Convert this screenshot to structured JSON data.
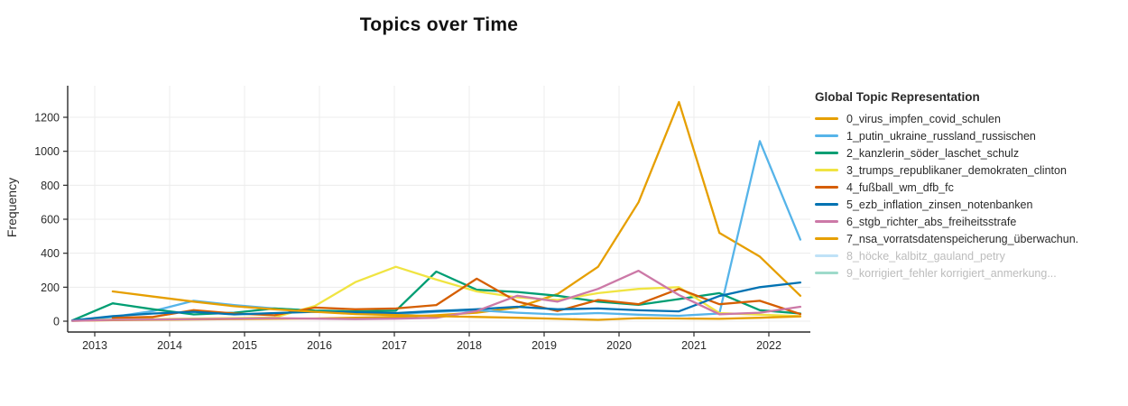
{
  "title": "Topics over Time",
  "legend": {
    "title": "Global Topic Representation"
  },
  "chart_data": {
    "type": "line",
    "title": "Topics over Time",
    "xlabel": "",
    "ylabel": "Frequency",
    "grid": true,
    "legend_position": "right",
    "xlim": [
      2012.6,
      2022.55
    ],
    "ylim": [
      -64,
      1386
    ],
    "xticks": {
      "values": [
        2013,
        2014,
        2015,
        2016,
        2017,
        2018,
        2019,
        2020,
        2021,
        2022
      ],
      "labels": [
        "2013",
        "2014",
        "2015",
        "2016",
        "2017",
        "2018",
        "2019",
        "2020",
        "2021",
        "2022"
      ]
    },
    "yticks": {
      "values": [
        0,
        200,
        400,
        600,
        800,
        1000,
        1200
      ],
      "labels": [
        "0",
        "200",
        "400",
        "600",
        "800",
        "1000",
        "1200"
      ]
    },
    "x": [
      2012.7,
      2013.24,
      2013.78,
      2014.32,
      2014.86,
      2015.4,
      2015.94,
      2016.48,
      2017.02,
      2017.56,
      2018.1,
      2018.64,
      2019.18,
      2019.72,
      2020.26,
      2020.8,
      2021.34,
      2021.88,
      2022.42
    ],
    "series": [
      {
        "name": "0_virus_impfen_covid_schulen",
        "color": "#E69F00",
        "hidden": false,
        "values": [
          2,
          6,
          8,
          10,
          12,
          14,
          16,
          20,
          25,
          35,
          50,
          80,
          160,
          320,
          700,
          1290,
          520,
          380,
          150
        ]
      },
      {
        "name": "1_putin_ukraine_russland_russischen",
        "color": "#56B4E9",
        "hidden": false,
        "values": [
          2,
          25,
          60,
          120,
          95,
          75,
          60,
          48,
          42,
          55,
          65,
          50,
          40,
          48,
          38,
          32,
          45,
          1060,
          480
        ]
      },
      {
        "name": "2_kanzlerin_söder_laschet_schulz",
        "color": "#009E73",
        "hidden": false,
        "values": [
          4,
          105,
          70,
          40,
          50,
          75,
          62,
          58,
          62,
          292,
          185,
          172,
          150,
          115,
          96,
          130,
          165,
          65,
          45
        ]
      },
      {
        "name": "3_trumps_republikaner_demokraten_clinton",
        "color": "#F0E442",
        "hidden": false,
        "values": [
          3,
          10,
          12,
          15,
          18,
          22,
          90,
          230,
          320,
          245,
          175,
          140,
          125,
          165,
          190,
          200,
          48,
          38,
          30
        ]
      },
      {
        "name": "4_fußball_wm_dfb_fc",
        "color": "#D55E00",
        "hidden": false,
        "values": [
          null,
          20,
          25,
          65,
          45,
          35,
          80,
          70,
          75,
          95,
          250,
          115,
          60,
          125,
          100,
          190,
          100,
          120,
          42
        ]
      },
      {
        "name": "5_ezb_inflation_zinsen_notenbanken",
        "color": "#0072B2",
        "hidden": false,
        "values": [
          4,
          30,
          45,
          55,
          40,
          48,
          55,
          52,
          48,
          60,
          70,
          85,
          70,
          75,
          64,
          58,
          148,
          200,
          228
        ]
      },
      {
        "name": "6_stgb_richter_abs_freiheitsstrafe",
        "color": "#CC79A7",
        "hidden": false,
        "values": [
          2,
          8,
          10,
          12,
          15,
          18,
          15,
          12,
          15,
          20,
          60,
          150,
          115,
          190,
          297,
          154,
          41,
          50,
          85
        ]
      },
      {
        "name": "7_nsa_vorratsdatenspeicherung_überwachun.",
        "color": "#E69F00",
        "hidden": false,
        "values": [
          null,
          175,
          145,
          115,
          88,
          70,
          55,
          42,
          36,
          30,
          25,
          20,
          14,
          8,
          18,
          16,
          14,
          20,
          28
        ]
      },
      {
        "name": "8_höcke_kalbitz_gauland_petry",
        "color": "#56B4E9",
        "hidden": true,
        "values": []
      },
      {
        "name": "9_korrigiert_fehler korrigiert_anmerkung...",
        "color": "#009E73",
        "hidden": true,
        "values": []
      }
    ]
  },
  "layout_colors": {
    "grid": "#ECECEC",
    "axis": "#2a2a2a",
    "tick_label": "#2a2a2a",
    "muted_label": "#bcbcbc"
  }
}
